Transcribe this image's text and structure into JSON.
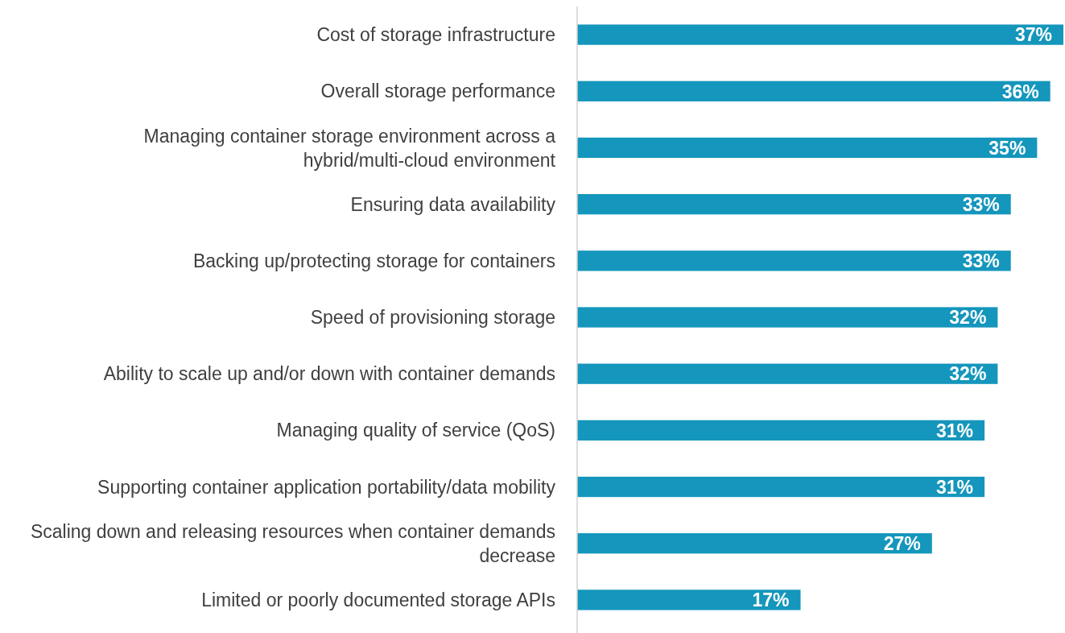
{
  "chart_data": {
    "type": "bar",
    "orientation": "horizontal",
    "relative": false,
    "categories": [
      "Cost of storage infrastructure",
      "Overall storage performance",
      "Managing container storage environment across a hybrid/multi-cloud environment",
      "Ensuring data availability",
      "Backing up/protecting storage for containers",
      "Speed of provisioning storage",
      "Ability to scale up and/or down with container demands",
      "Managing quality of service (QoS)",
      "Supporting container application portability/data mobility",
      "Scaling down and releasing resources when container demands decrease",
      "Limited or poorly documented storage APIs"
    ],
    "values": [
      37,
      36,
      35,
      33,
      33,
      32,
      32,
      31,
      31,
      27,
      17
    ],
    "value_labels": [
      "37%",
      "36%",
      "35%",
      "33%",
      "33%",
      "32%",
      "32%",
      "31%",
      "31%",
      "27%",
      "17%"
    ],
    "color": "#1596bc"
  }
}
